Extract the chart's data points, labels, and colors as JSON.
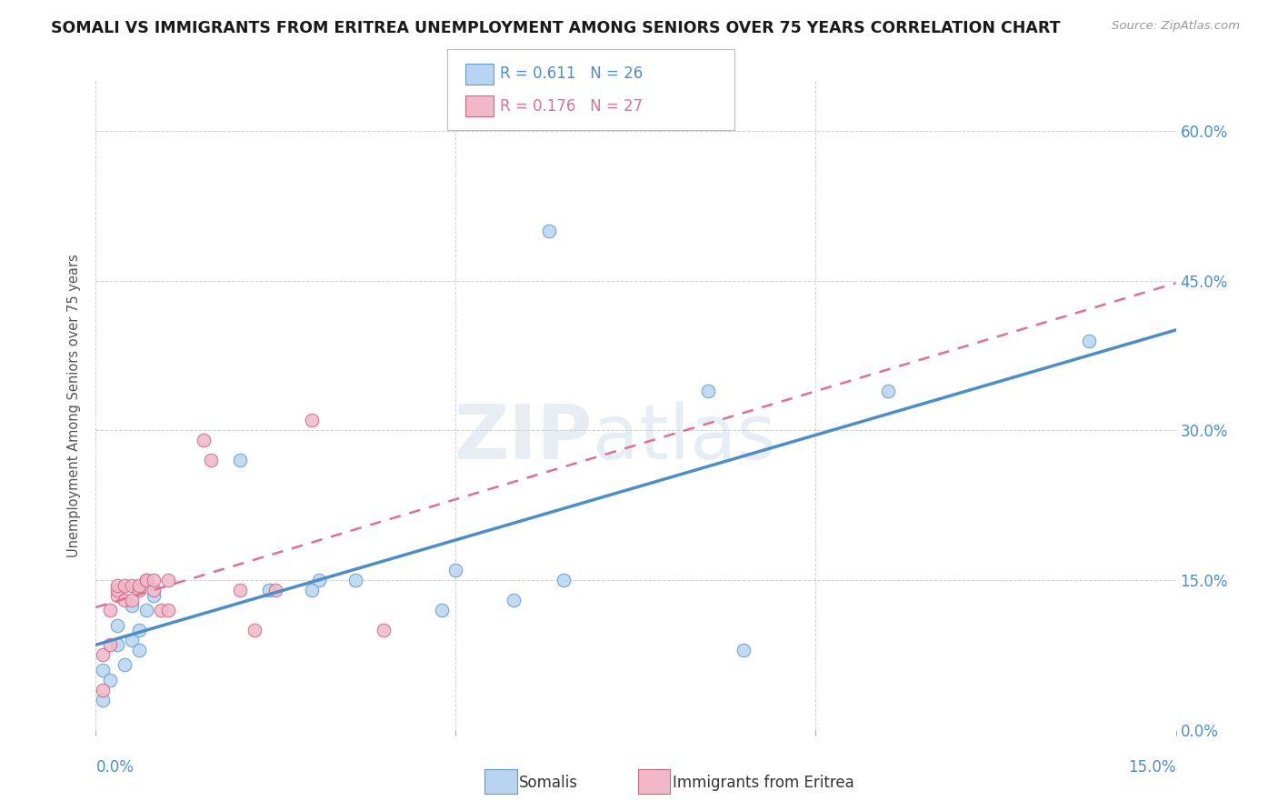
{
  "title": "SOMALI VS IMMIGRANTS FROM ERITREA UNEMPLOYMENT AMONG SENIORS OVER 75 YEARS CORRELATION CHART",
  "source": "Source: ZipAtlas.com",
  "ylabel": "Unemployment Among Seniors over 75 years",
  "R1": 0.611,
  "N1": 26,
  "R2": 0.176,
  "N2": 27,
  "color_somali_fill": "#b8d4f0",
  "color_somali_edge": "#6699cc",
  "color_eritrea_fill": "#f0b8c8",
  "color_eritrea_edge": "#cc6688",
  "color_line_somali": "#4d8ec9",
  "color_line_eritrea": "#e07090",
  "color_axis_labels": "#4d8ec9",
  "xlim": [
    0.0,
    0.15
  ],
  "ylim": [
    0.0,
    0.65
  ],
  "ytick_vals": [
    0.0,
    0.15,
    0.3,
    0.45,
    0.6
  ],
  "legend_label1": "Somalis",
  "legend_label2": "Immigrants from Eritrea",
  "somali_x": [
    0.001,
    0.001,
    0.002,
    0.003,
    0.003,
    0.004,
    0.005,
    0.005,
    0.006,
    0.006,
    0.007,
    0.008,
    0.02,
    0.024,
    0.03,
    0.031,
    0.036,
    0.048,
    0.05,
    0.058,
    0.063,
    0.065,
    0.085,
    0.09,
    0.11,
    0.138
  ],
  "somali_y": [
    0.03,
    0.06,
    0.05,
    0.085,
    0.105,
    0.065,
    0.09,
    0.125,
    0.08,
    0.1,
    0.12,
    0.135,
    0.27,
    0.14,
    0.14,
    0.15,
    0.15,
    0.12,
    0.16,
    0.13,
    0.5,
    0.15,
    0.34,
    0.08,
    0.34,
    0.39
  ],
  "eritrea_x": [
    0.001,
    0.001,
    0.002,
    0.002,
    0.003,
    0.003,
    0.003,
    0.004,
    0.004,
    0.005,
    0.005,
    0.006,
    0.006,
    0.007,
    0.007,
    0.008,
    0.008,
    0.009,
    0.01,
    0.01,
    0.015,
    0.016,
    0.02,
    0.022,
    0.025,
    0.03,
    0.04
  ],
  "eritrea_y": [
    0.04,
    0.075,
    0.085,
    0.12,
    0.135,
    0.14,
    0.145,
    0.13,
    0.145,
    0.13,
    0.145,
    0.14,
    0.145,
    0.15,
    0.15,
    0.14,
    0.15,
    0.12,
    0.12,
    0.15,
    0.29,
    0.27,
    0.14,
    0.1,
    0.14,
    0.31,
    0.1
  ]
}
